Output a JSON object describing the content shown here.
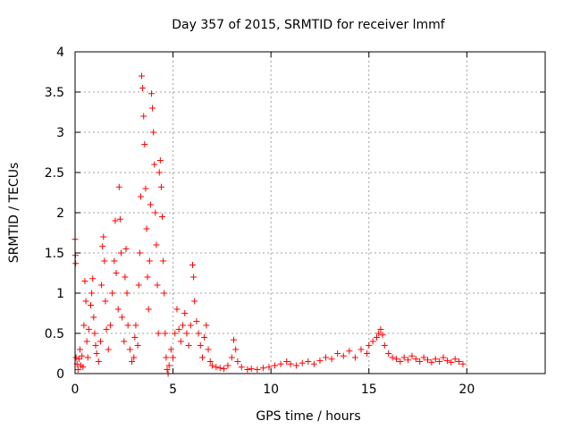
{
  "chart_data": {
    "type": "scatter",
    "title": "Day 357 of 2015, SRMTID for receiver lmmf",
    "xlabel": "GPS time / hours",
    "ylabel": "SRMTID / TECUs",
    "xlim": [
      0,
      24
    ],
    "ylim": [
      0,
      4
    ],
    "xticks": [
      0,
      5,
      10,
      15,
      20
    ],
    "xtick_labels": [
      "0",
      "5",
      "10",
      "15",
      "20"
    ],
    "yticks": [
      0,
      0.5,
      1,
      1.5,
      2,
      2.5,
      3,
      3.5,
      4
    ],
    "ytick_labels": [
      "0",
      "0.5",
      "1",
      "1.5",
      "2",
      "2.5",
      "3",
      "3.5",
      "4"
    ],
    "grid": true,
    "marker": "plus",
    "color": "#ff0000",
    "series": [
      {
        "name": "SRMTID",
        "points": [
          [
            0.0,
            1.67
          ],
          [
            0.02,
            1.47
          ],
          [
            0.03,
            1.37
          ],
          [
            0.05,
            0.2
          ],
          [
            0.1,
            0.12
          ],
          [
            0.15,
            0.05
          ],
          [
            0.2,
            0.18
          ],
          [
            0.25,
            0.3
          ],
          [
            0.3,
            0.1
          ],
          [
            0.35,
            0.22
          ],
          [
            0.4,
            0.08
          ],
          [
            0.45,
            0.6
          ],
          [
            0.5,
            1.15
          ],
          [
            0.55,
            0.9
          ],
          [
            0.6,
            0.4
          ],
          [
            0.65,
            0.2
          ],
          [
            0.7,
            0.55
          ],
          [
            0.8,
            0.85
          ],
          [
            0.85,
            1.0
          ],
          [
            0.9,
            1.18
          ],
          [
            0.95,
            0.7
          ],
          [
            1.0,
            0.5
          ],
          [
            1.05,
            0.35
          ],
          [
            1.1,
            0.25
          ],
          [
            1.2,
            0.15
          ],
          [
            1.3,
            0.4
          ],
          [
            1.35,
            1.1
          ],
          [
            1.4,
            1.58
          ],
          [
            1.45,
            1.7
          ],
          [
            1.5,
            1.4
          ],
          [
            1.55,
            0.9
          ],
          [
            1.6,
            0.55
          ],
          [
            1.7,
            0.3
          ],
          [
            1.8,
            0.6
          ],
          [
            1.9,
            1.0
          ],
          [
            2.0,
            1.4
          ],
          [
            2.05,
            1.9
          ],
          [
            2.1,
            1.25
          ],
          [
            2.2,
            0.8
          ],
          [
            2.25,
            2.32
          ],
          [
            2.3,
            1.92
          ],
          [
            2.35,
            1.5
          ],
          [
            2.4,
            0.7
          ],
          [
            2.5,
            0.4
          ],
          [
            2.55,
            1.2
          ],
          [
            2.6,
            1.55
          ],
          [
            2.65,
            1.0
          ],
          [
            2.7,
            0.6
          ],
          [
            2.8,
            0.3
          ],
          [
            2.9,
            0.15
          ],
          [
            3.0,
            0.2
          ],
          [
            3.05,
            0.45
          ],
          [
            3.1,
            0.6
          ],
          [
            3.2,
            0.35
          ],
          [
            3.25,
            1.1
          ],
          [
            3.3,
            1.5
          ],
          [
            3.35,
            2.2
          ],
          [
            3.4,
            3.7
          ],
          [
            3.45,
            3.55
          ],
          [
            3.5,
            3.2
          ],
          [
            3.55,
            2.85
          ],
          [
            3.6,
            2.3
          ],
          [
            3.65,
            1.8
          ],
          [
            3.7,
            1.2
          ],
          [
            3.75,
            0.8
          ],
          [
            3.8,
            1.4
          ],
          [
            3.85,
            2.1
          ],
          [
            3.9,
            3.48
          ],
          [
            3.95,
            3.3
          ],
          [
            4.0,
            3.0
          ],
          [
            4.05,
            2.6
          ],
          [
            4.1,
            2.0
          ],
          [
            4.15,
            1.6
          ],
          [
            4.2,
            1.1
          ],
          [
            4.25,
            0.5
          ],
          [
            4.3,
            2.5
          ],
          [
            4.35,
            2.65
          ],
          [
            4.4,
            2.32
          ],
          [
            4.45,
            1.95
          ],
          [
            4.5,
            1.4
          ],
          [
            4.55,
            1.0
          ],
          [
            4.6,
            0.5
          ],
          [
            4.65,
            0.2
          ],
          [
            4.7,
            0.05
          ],
          [
            4.75,
            0.0
          ],
          [
            4.8,
            0.1
          ],
          [
            4.9,
            0.3
          ],
          [
            5.0,
            0.2
          ],
          [
            5.1,
            0.5
          ],
          [
            5.2,
            0.8
          ],
          [
            5.3,
            0.55
          ],
          [
            5.4,
            0.4
          ],
          [
            5.5,
            0.6
          ],
          [
            5.6,
            0.75
          ],
          [
            5.7,
            0.5
          ],
          [
            5.8,
            0.35
          ],
          [
            5.9,
            0.6
          ],
          [
            6.0,
            1.35
          ],
          [
            6.05,
            1.2
          ],
          [
            6.1,
            0.9
          ],
          [
            6.2,
            0.65
          ],
          [
            6.3,
            0.5
          ],
          [
            6.4,
            0.35
          ],
          [
            6.5,
            0.2
          ],
          [
            6.6,
            0.45
          ],
          [
            6.7,
            0.6
          ],
          [
            6.8,
            0.3
          ],
          [
            6.9,
            0.15
          ],
          [
            7.0,
            0.1
          ],
          [
            7.2,
            0.08
          ],
          [
            7.4,
            0.07
          ],
          [
            7.6,
            0.06
          ],
          [
            7.8,
            0.1
          ],
          [
            8.0,
            0.2
          ],
          [
            8.1,
            0.42
          ],
          [
            8.2,
            0.3
          ],
          [
            8.3,
            0.15
          ],
          [
            8.5,
            0.08
          ],
          [
            8.8,
            0.05
          ],
          [
            9.0,
            0.06
          ],
          [
            9.3,
            0.05
          ],
          [
            9.6,
            0.07
          ],
          [
            9.9,
            0.08
          ],
          [
            10.2,
            0.1
          ],
          [
            10.5,
            0.12
          ],
          [
            10.8,
            0.15
          ],
          [
            11.0,
            0.12
          ],
          [
            11.3,
            0.1
          ],
          [
            11.6,
            0.13
          ],
          [
            11.9,
            0.15
          ],
          [
            12.2,
            0.12
          ],
          [
            12.5,
            0.16
          ],
          [
            12.8,
            0.2
          ],
          [
            13.1,
            0.18
          ],
          [
            13.4,
            0.25
          ],
          [
            13.7,
            0.22
          ],
          [
            14.0,
            0.28
          ],
          [
            14.3,
            0.2
          ],
          [
            14.6,
            0.3
          ],
          [
            14.9,
            0.25
          ],
          [
            15.0,
            0.35
          ],
          [
            15.2,
            0.4
          ],
          [
            15.4,
            0.45
          ],
          [
            15.5,
            0.5
          ],
          [
            15.6,
            0.55
          ],
          [
            15.7,
            0.48
          ],
          [
            15.8,
            0.35
          ],
          [
            16.0,
            0.25
          ],
          [
            16.2,
            0.2
          ],
          [
            16.4,
            0.18
          ],
          [
            16.6,
            0.15
          ],
          [
            16.8,
            0.2
          ],
          [
            17.0,
            0.17
          ],
          [
            17.2,
            0.22
          ],
          [
            17.4,
            0.18
          ],
          [
            17.6,
            0.15
          ],
          [
            17.8,
            0.2
          ],
          [
            18.0,
            0.17
          ],
          [
            18.2,
            0.14
          ],
          [
            18.4,
            0.18
          ],
          [
            18.6,
            0.15
          ],
          [
            18.8,
            0.2
          ],
          [
            19.0,
            0.16
          ],
          [
            19.2,
            0.14
          ],
          [
            19.4,
            0.18
          ],
          [
            19.6,
            0.15
          ],
          [
            19.8,
            0.12
          ]
        ]
      }
    ]
  }
}
